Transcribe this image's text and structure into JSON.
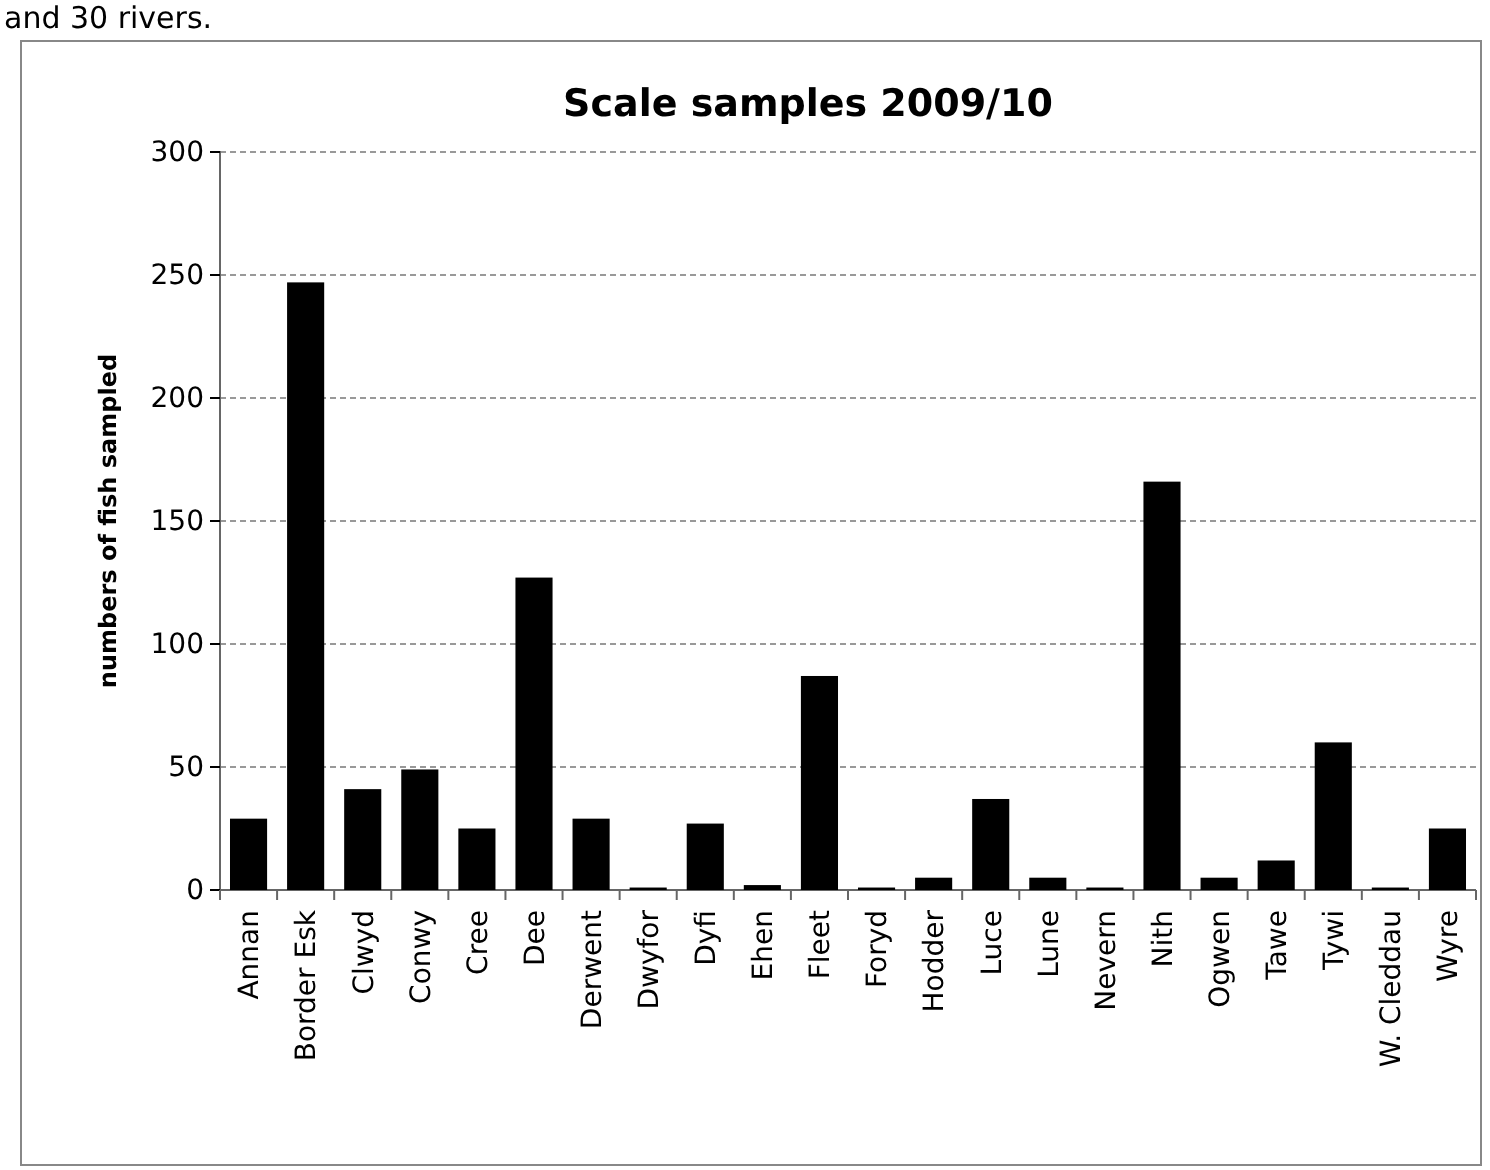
{
  "chart_data": {
    "type": "bar",
    "title": "Scale samples 2009/10",
    "ylabel": "numbers of fish sampled",
    "annotations": [
      "and 30 rivers."
    ],
    "categories": [
      "Annan",
      "Border Esk",
      "Clwyd",
      "Conwy",
      "Cree",
      "Dee",
      "Derwent",
      "Dwyfor",
      "Dyfi",
      "Ehen",
      "Fleet",
      "Foryd",
      "Hodder",
      "Luce",
      "Lune",
      "Nevern",
      "Nith",
      "Ogwen",
      "Tawe",
      "Tywi",
      "W. Cleddau",
      "Wyre"
    ],
    "values": [
      29,
      247,
      41,
      49,
      25,
      127,
      29,
      1,
      27,
      2,
      87,
      1,
      5,
      37,
      5,
      1,
      166,
      5,
      12,
      60,
      1,
      25
    ],
    "color": "#000000",
    "ylim": [
      0,
      300
    ],
    "yticks": [
      0,
      50,
      100,
      150,
      200,
      250,
      300
    ],
    "grid": "y"
  }
}
